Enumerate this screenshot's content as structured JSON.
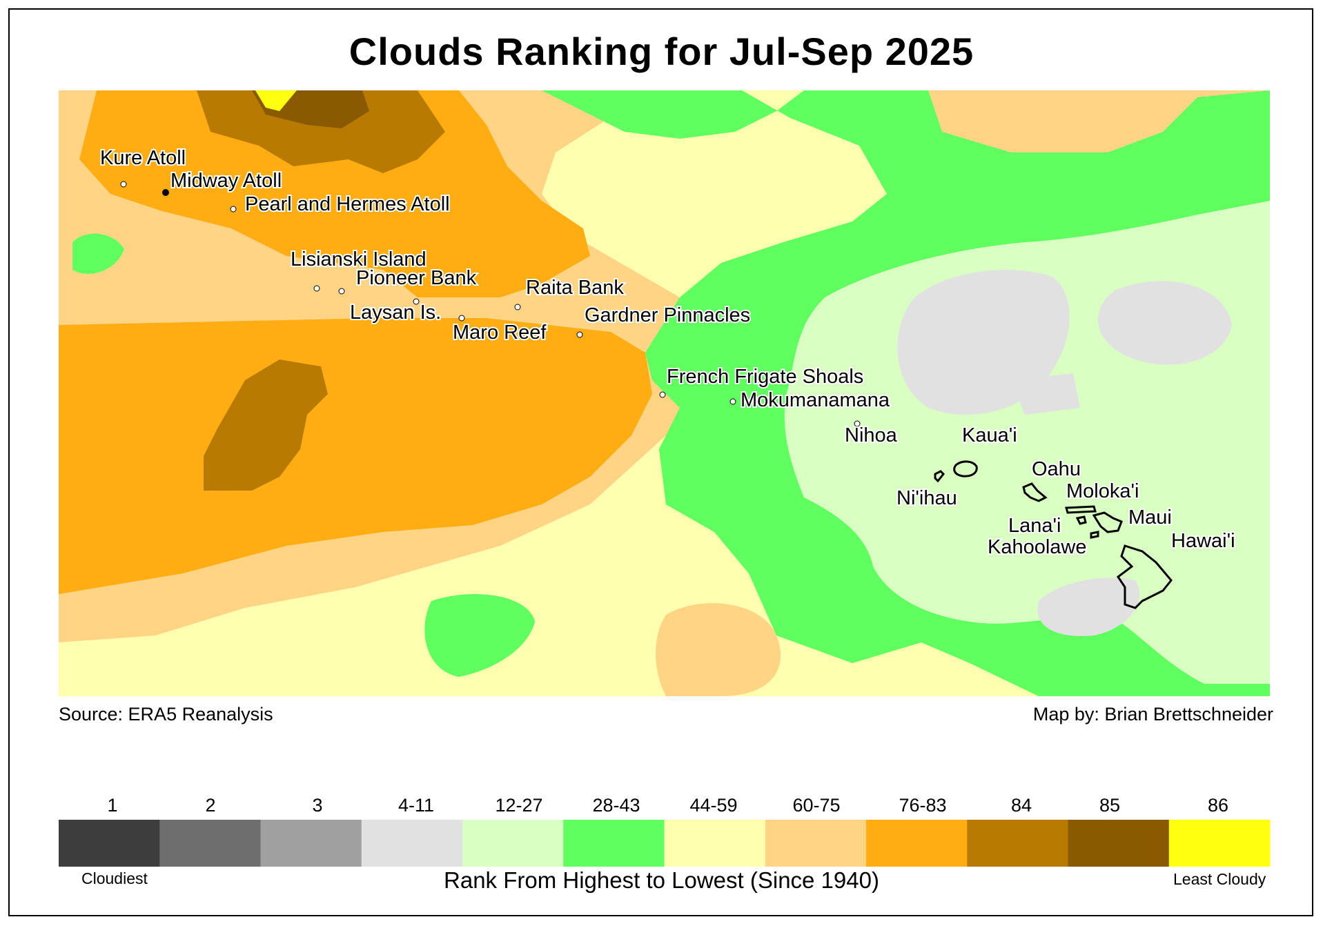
{
  "title": "Clouds Ranking for Jul-Sep 2025",
  "source": "Source: ERA5 Reanalysis",
  "credit": "Map by: Brian Brettschneider",
  "legend": {
    "title": "Rank From Highest to Lowest (Since 1940)",
    "low_label": "Cloudiest",
    "high_label": "Least Cloudy",
    "bins": [
      {
        "label": "1",
        "color": "#3d3d3d"
      },
      {
        "label": "2",
        "color": "#6e6e6e"
      },
      {
        "label": "3",
        "color": "#a0a0a0"
      },
      {
        "label": "4-11",
        "color": "#e1e1e1"
      },
      {
        "label": "12-27",
        "color": "#d9ffc2"
      },
      {
        "label": "28-43",
        "color": "#5eff5e"
      },
      {
        "label": "44-59",
        "color": "#ffffb0"
      },
      {
        "label": "60-75",
        "color": "#ffd585"
      },
      {
        "label": "76-83",
        "color": "#ffad12"
      },
      {
        "label": "84",
        "color": "#b87a00"
      },
      {
        "label": "85",
        "color": "#8a5a00"
      },
      {
        "label": "86",
        "color": "#ffff0f"
      }
    ]
  },
  "places": [
    "Kure Atoll",
    "Midway Atoll",
    "Pearl and Hermes Atoll",
    "Lisianski Island",
    "Pioneer Bank",
    "Raita Bank",
    "Laysan Is.",
    "Gardner Pinnacles",
    "Maro Reef",
    "French Frigate Shoals",
    "Mokumanamana",
    "Nihoa",
    "Kaua'i",
    "Oahu",
    "Ni'ihau",
    "Moloka'i",
    "Maui",
    "Lana'i",
    "Kahoolawe",
    "Hawai'i"
  ]
}
